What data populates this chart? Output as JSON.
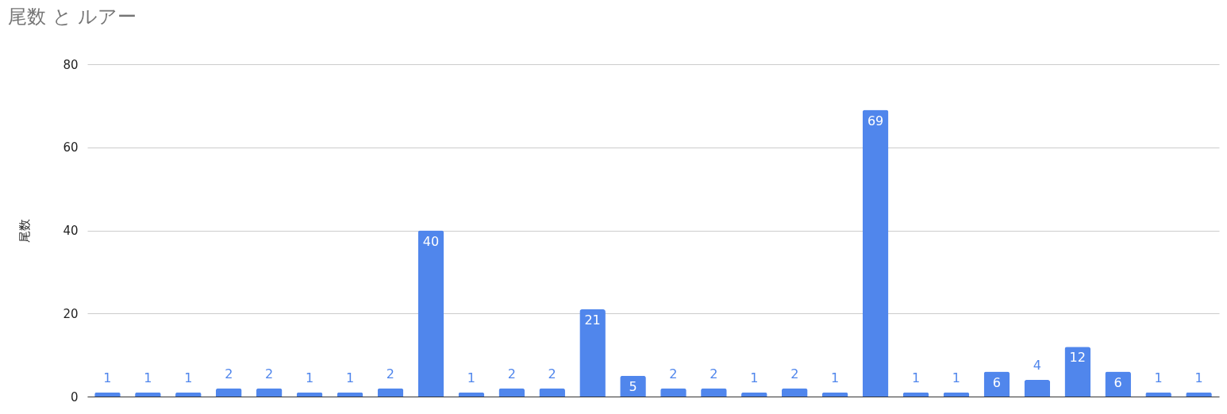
{
  "chart_data": {
    "type": "bar",
    "title": "尾数 と ルアー",
    "ylabel": "尾数",
    "categories": [
      null,
      null,
      null,
      null,
      null,
      null,
      null,
      null,
      null,
      null,
      null,
      null,
      null,
      null,
      null,
      null,
      null,
      null,
      null,
      null,
      null,
      null,
      null,
      null,
      null,
      null,
      null,
      null
    ],
    "values": [
      1,
      1,
      1,
      2,
      2,
      1,
      1,
      2,
      40,
      1,
      2,
      2,
      21,
      5,
      2,
      2,
      1,
      2,
      1,
      69,
      1,
      1,
      6,
      4,
      12,
      6,
      1,
      1
    ],
    "color": "#5086ec",
    "ylim": [
      0,
      80
    ],
    "yticks": [
      0,
      20,
      40,
      60,
      80
    ],
    "grid": "y",
    "data_labels": true,
    "tick_labels": "y"
  }
}
